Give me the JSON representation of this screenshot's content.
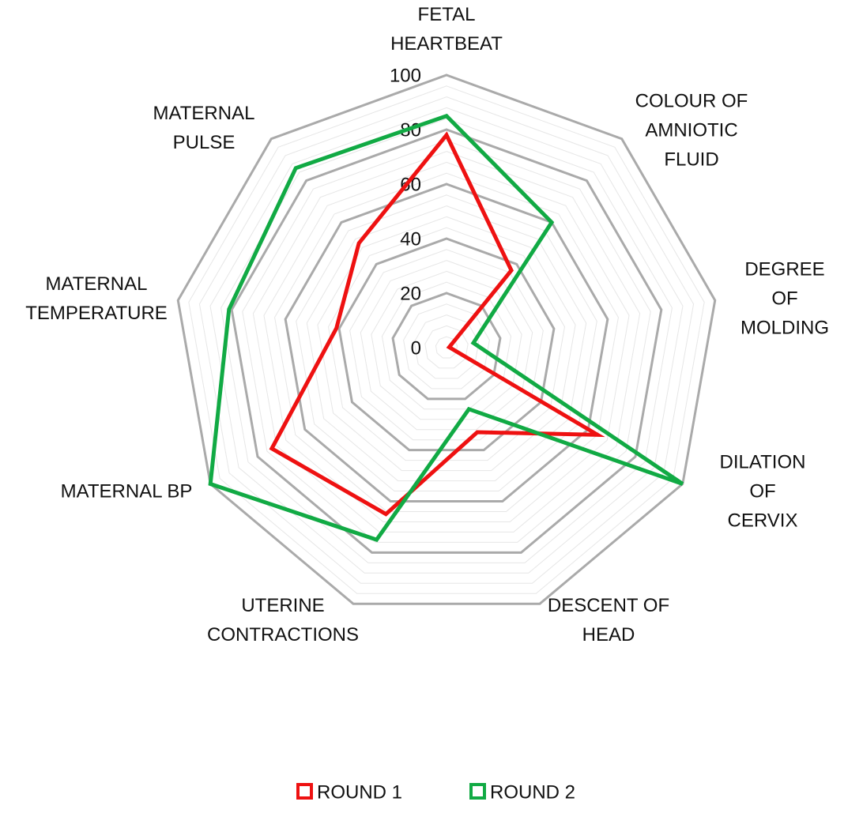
{
  "chart_data": {
    "type": "radar",
    "categories": [
      "FETAL\nHEARTBEAT",
      "COLOUR OF\nAMNIOTIC\nFLUID",
      "DEGREE OF\nMOLDING",
      "DILATION OF\nCERVIX",
      "DESCENT OF\nHEAD",
      "UTERINE\nCONTRACTIONS",
      "MATERNAL BP",
      "MATERNAL\nTEMPERATURE",
      "MATERNAL\nPULSE"
    ],
    "series": [
      {
        "name": "ROUND 1",
        "color": "#ee1111",
        "values": [
          78,
          37,
          1,
          64,
          33,
          65,
          74,
          41,
          50
        ]
      },
      {
        "name": "ROUND 2",
        "color": "#11aa44",
        "values": [
          85,
          60,
          10,
          100,
          24,
          75,
          100,
          81,
          86
        ]
      }
    ],
    "ylim": [
      0,
      100
    ],
    "yticks": [
      0,
      20,
      40,
      60,
      80,
      100
    ],
    "grid": true,
    "legend": "bottom"
  }
}
